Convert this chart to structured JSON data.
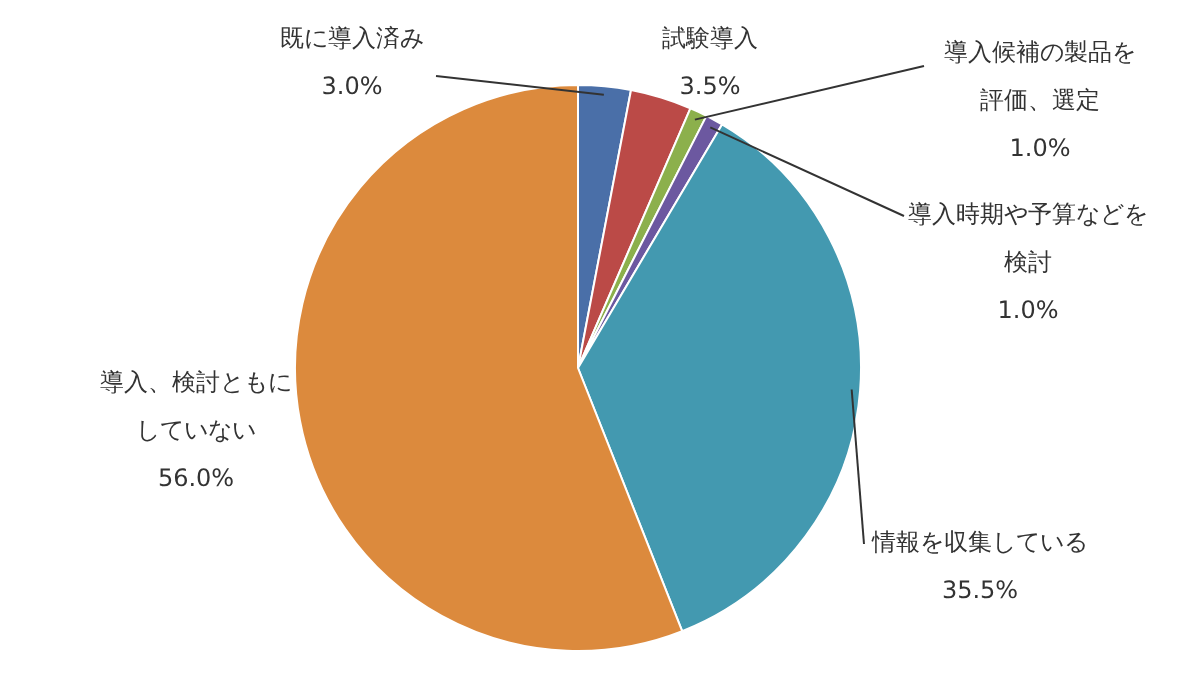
{
  "chart_data": {
    "type": "pie",
    "categories": [
      "既に導入済み",
      "試験導入",
      "導入候補の製品を評価、選定",
      "導入時期や予算などを検討",
      "情報を収集している",
      "導入、検討ともにしていない"
    ],
    "values": [
      3.0,
      3.5,
      1.0,
      1.0,
      35.5,
      56.0
    ],
    "value_labels": [
      "3.0%",
      "3.5%",
      "1.0%",
      "1.0%",
      "35.5%",
      "56.0%"
    ],
    "colors": [
      "#4a6fa8",
      "#bb4a47",
      "#8cb04c",
      "#6c58a0",
      "#4399b0",
      "#dc8a3d"
    ],
    "legend": false
  }
}
